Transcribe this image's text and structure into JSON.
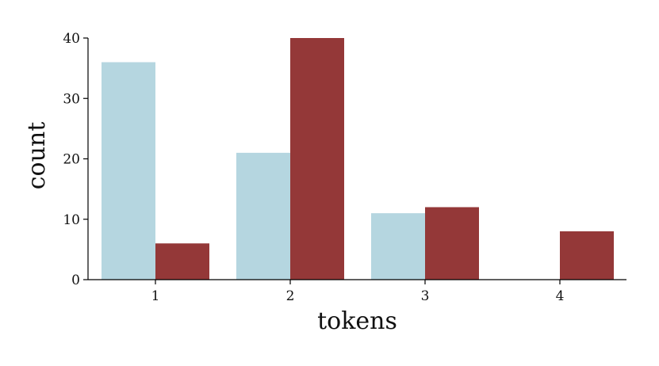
{
  "chart_data": {
    "type": "bar",
    "title": "",
    "xlabel": "tokens",
    "ylabel": "count",
    "categories": [
      "1",
      "2",
      "3",
      "4"
    ],
    "ylim": [
      0,
      40
    ],
    "yticks": [
      0,
      10,
      20,
      30,
      40
    ],
    "grid": false,
    "legend": "none",
    "series": [
      {
        "values": [
          36,
          21,
          11,
          0
        ],
        "color": "#b5d6e0"
      },
      {
        "values": [
          6,
          40,
          12,
          8
        ],
        "color": "#943838"
      }
    ]
  }
}
